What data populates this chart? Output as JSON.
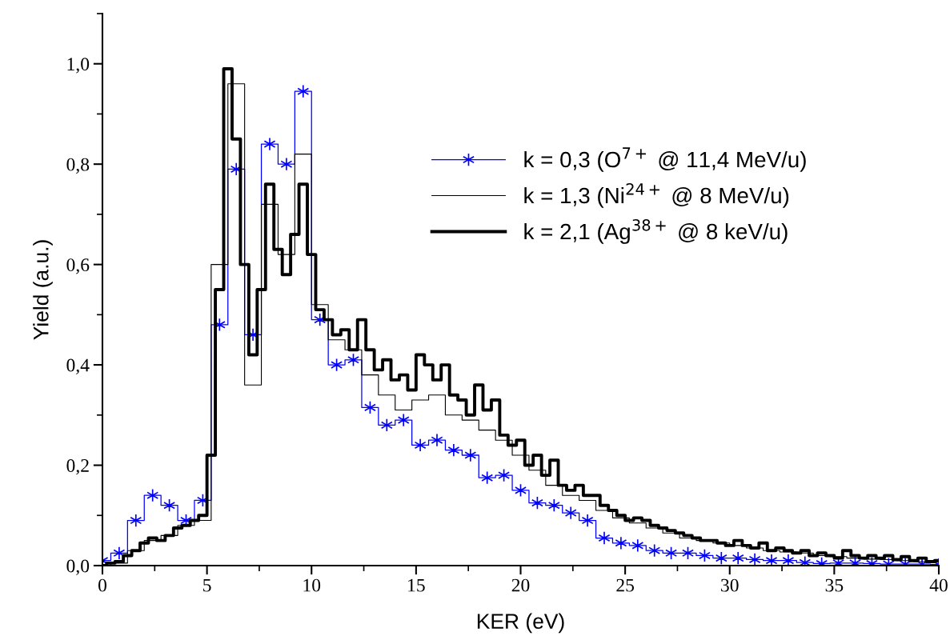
{
  "chart_data": {
    "type": "step",
    "xlabel": "KER (eV)",
    "ylabel": "Yield (a.u.)",
    "xlim": [
      0,
      40
    ],
    "xticks": [
      0,
      5,
      10,
      15,
      20,
      25,
      30,
      35,
      40
    ],
    "ylim": [
      0,
      1.1
    ],
    "yticks": [
      {
        "value": 0,
        "label": "0,0"
      },
      {
        "value": 0.2,
        "label": "0,2"
      },
      {
        "value": 0.4,
        "label": "0,4"
      },
      {
        "value": 0.6,
        "label": "0,6"
      },
      {
        "value": 0.8,
        "label": "0,8"
      },
      {
        "value": 1.0,
        "label": "1,0"
      }
    ],
    "grid": false,
    "legend": "right",
    "series": [
      {
        "name": "k = 0,3 (O$^{7+}$ @ 11,4 MeV/u)",
        "color": "#0000ff",
        "marker": "cross",
        "x": [
          0,
          0.8,
          1.6,
          2.4,
          3.2,
          4.0,
          4.8,
          5.6,
          6.4,
          7.2,
          8.0,
          8.8,
          9.6,
          10.4,
          11.2,
          12.0,
          12.8,
          13.6,
          14.4,
          15.2,
          16.0,
          16.8,
          17.6,
          18.4,
          19.2,
          20.0,
          20.8,
          21.6,
          22.4,
          23.2,
          24.0,
          24.8,
          25.6,
          26.4,
          27.2,
          28.0,
          28.8,
          29.6,
          30.4,
          31.2,
          32.0,
          32.8,
          33.6,
          34.4,
          35.2,
          36.0,
          36.8,
          37.6,
          38.4,
          39.2,
          40.0
        ],
        "values": [
          0.01,
          0.025,
          0.09,
          0.14,
          0.12,
          0.09,
          0.13,
          0.48,
          0.79,
          0.46,
          0.84,
          0.8,
          0.945,
          0.49,
          0.4,
          0.41,
          0.315,
          0.28,
          0.29,
          0.24,
          0.25,
          0.23,
          0.22,
          0.175,
          0.18,
          0.15,
          0.125,
          0.12,
          0.105,
          0.09,
          0.055,
          0.045,
          0.04,
          0.03,
          0.025,
          0.025,
          0.02,
          0.015,
          0.015,
          0.012,
          0.01,
          0.01,
          0.006,
          0.004,
          0.005,
          0.005,
          0.004,
          0.003,
          0.003,
          0.003,
          0.002
        ]
      },
      {
        "name": "k = 1,3 (Ni$^{24+}$ @ 8 MeV/u)",
        "color": "#000000",
        "x": [
          0,
          0.8,
          1.6,
          2.4,
          3.2,
          4.0,
          4.8,
          5.6,
          6.4,
          7.2,
          8.0,
          8.8,
          9.6,
          10.4,
          11.2,
          12.0,
          12.8,
          13.6,
          14.4,
          15.2,
          16.0,
          16.8,
          17.6,
          18.4,
          19.2,
          20.0,
          20.8,
          21.6,
          22.4,
          23.2,
          24.0,
          24.8,
          25.6,
          26.4,
          27.2,
          28.0,
          28.8,
          29.6,
          30.4,
          31.2,
          32.0,
          32.8,
          33.6,
          34.4,
          35.2,
          36.0,
          36.8,
          37.6,
          38.4,
          39.2,
          40.0
        ],
        "values": [
          0,
          0.005,
          0.03,
          0.05,
          0.06,
          0.08,
          0.09,
          0.6,
          0.96,
          0.36,
          0.72,
          0.62,
          0.82,
          0.52,
          0.45,
          0.43,
          0.38,
          0.34,
          0.31,
          0.33,
          0.34,
          0.3,
          0.29,
          0.27,
          0.25,
          0.22,
          0.19,
          0.16,
          0.14,
          0.13,
          0.11,
          0.095,
          0.085,
          0.075,
          0.065,
          0.055,
          0.05,
          0.045,
          0.04,
          0.035,
          0.03,
          0.027,
          0.025,
          0.02,
          0.018,
          0.015,
          0.013,
          0.012,
          0.01,
          0.008,
          0.007
        ]
      },
      {
        "name": "k = 2,1 (Ag$^{38+}$ @ 8 keV/u)",
        "color": "#000000",
        "x": [
          0,
          0.4,
          0.8,
          1.2,
          1.6,
          2.0,
          2.4,
          2.8,
          3.2,
          3.6,
          4.0,
          4.4,
          4.8,
          5.2,
          5.6,
          6.0,
          6.4,
          6.8,
          7.2,
          7.6,
          8.0,
          8.4,
          8.8,
          9.2,
          9.6,
          10.0,
          10.4,
          10.8,
          11.2,
          11.6,
          12.0,
          12.4,
          12.8,
          13.2,
          13.6,
          14.0,
          14.4,
          14.8,
          15.2,
          15.6,
          16.0,
          16.4,
          16.8,
          17.2,
          17.6,
          18.0,
          18.4,
          18.8,
          19.2,
          19.6,
          20.0,
          20.4,
          20.8,
          21.2,
          21.6,
          22.0,
          22.4,
          22.8,
          23.2,
          23.6,
          24.0,
          24.4,
          24.8,
          25.2,
          25.6,
          26.0,
          26.4,
          26.8,
          27.2,
          27.6,
          28.0,
          28.4,
          28.8,
          29.2,
          29.6,
          30.0,
          30.4,
          30.8,
          31.2,
          31.6,
          32.0,
          32.4,
          32.8,
          33.2,
          33.6,
          34.0,
          34.4,
          34.8,
          35.2,
          35.6,
          36.0,
          36.4,
          36.8,
          37.2,
          37.6,
          38.0,
          38.4,
          38.8,
          39.2,
          39.6,
          40.0
        ],
        "values": [
          0,
          0.005,
          0.008,
          0.02,
          0.03,
          0.045,
          0.055,
          0.05,
          0.06,
          0.075,
          0.08,
          0.09,
          0.1,
          0.22,
          0.55,
          0.99,
          0.85,
          0.6,
          0.42,
          0.55,
          0.76,
          0.63,
          0.58,
          0.66,
          0.76,
          0.62,
          0.51,
          0.49,
          0.46,
          0.47,
          0.43,
          0.49,
          0.43,
          0.39,
          0.41,
          0.37,
          0.38,
          0.35,
          0.42,
          0.4,
          0.37,
          0.4,
          0.34,
          0.33,
          0.3,
          0.36,
          0.31,
          0.33,
          0.26,
          0.24,
          0.25,
          0.2,
          0.22,
          0.18,
          0.21,
          0.16,
          0.15,
          0.16,
          0.14,
          0.14,
          0.12,
          0.11,
          0.1,
          0.09,
          0.095,
          0.09,
          0.08,
          0.075,
          0.07,
          0.065,
          0.06,
          0.055,
          0.05,
          0.05,
          0.045,
          0.04,
          0.05,
          0.04,
          0.035,
          0.045,
          0.03,
          0.035,
          0.03,
          0.025,
          0.03,
          0.02,
          0.025,
          0.02,
          0.015,
          0.03,
          0.02,
          0.015,
          0.02,
          0.015,
          0.02,
          0.012,
          0.018,
          0.01,
          0.015,
          0.008,
          0.01
        ]
      }
    ]
  }
}
